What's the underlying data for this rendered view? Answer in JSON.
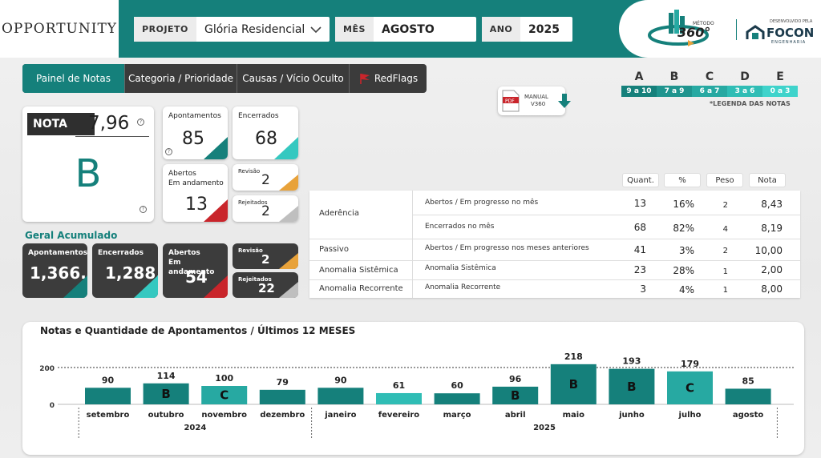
{
  "header": {
    "logo": "OPPORTUNITY",
    "filters": [
      {
        "label": "PROJETO",
        "value": "Glória Residencial"
      },
      {
        "label": "MÊS",
        "value": "AGOSTO"
      },
      {
        "label": "ANO",
        "value": "2025"
      }
    ],
    "brand": {
      "method_small": "MÉTODO",
      "method": "360°",
      "dev_small": "DESENVOLVIDO PELA",
      "company": "FOCON",
      "company_sub": "ENGENHARIA"
    }
  },
  "tabs": [
    {
      "label": "Painel de Notas",
      "active": true
    },
    {
      "label": "Categoria / Prioridade",
      "active": false
    },
    {
      "label": "Causas / Vício Oculto",
      "active": false
    },
    {
      "label": "RedFlags",
      "active": false
    }
  ],
  "manual": {
    "line1": "MANUAL",
    "line2": "V360"
  },
  "legend": {
    "grades": [
      {
        "letter": "A",
        "range": "9 a 10",
        "color": "#15807b"
      },
      {
        "letter": "B",
        "range": "7 a 9",
        "color": "#1f948e"
      },
      {
        "letter": "C",
        "range": "6 a 7",
        "color": "#27a9a2"
      },
      {
        "letter": "D",
        "range": "3 a 6",
        "color": "#2fbdb5"
      },
      {
        "letter": "E",
        "range": "0 a 3",
        "color": "#3fd3cb"
      }
    ],
    "caption": "*LEGENDA DAS NOTAS"
  },
  "score": {
    "label": "NOTA",
    "value": "7,96",
    "grade": "B"
  },
  "month_cards": {
    "apontamentos": {
      "label": "Apontamentos",
      "value": "85"
    },
    "encerrados": {
      "label": "Encerrados",
      "value": "68"
    },
    "abertos": {
      "label": "Abertos\nEm andamento",
      "value": "13"
    },
    "revisao": {
      "label": "Revisão",
      "value": "2"
    },
    "rejeitados": {
      "label": "Rejeitados",
      "value": "2"
    }
  },
  "accum": {
    "title": "Geral Acumulado",
    "apontamentos": {
      "label": "Apontamentos",
      "value": "1,366..."
    },
    "encerrados": {
      "label": "Encerrados",
      "value": "1,288..."
    },
    "abertos": {
      "label": "Abertos\nEm andamento",
      "value": "54"
    },
    "revisao": {
      "label": "Revisão",
      "value": "2"
    },
    "rejeitados": {
      "label": "Rejeitados",
      "value": "22"
    }
  },
  "table": {
    "headers": [
      "Quant.",
      "%",
      "Peso",
      "Nota"
    ],
    "rows": [
      {
        "category": "Aderência",
        "desc": "Abertos / Em progresso no mês",
        "quant": "13",
        "pct": "16%",
        "peso": "2",
        "nota": "8,43"
      },
      {
        "category": "",
        "desc": "Encerrados no mês",
        "quant": "68",
        "pct": "82%",
        "peso": "4",
        "nota": "8,19"
      },
      {
        "category": "Passivo",
        "desc": "Abertos / Em progresso nos meses anteriores",
        "quant": "41",
        "pct": "3%",
        "peso": "2",
        "nota": "10,00"
      },
      {
        "category": "Anomalia Sistêmica",
        "desc": "Anomalia Sistêmica",
        "quant": "23",
        "pct": "28%",
        "peso": "1",
        "nota": "2,00"
      },
      {
        "category": "Anomalia Recorrente",
        "desc": "Anomalia Recorrente",
        "quant": "3",
        "pct": "4%",
        "peso": "1",
        "nota": "8,00"
      }
    ]
  },
  "chart_data": {
    "type": "bar",
    "title": "Notas e Quantidade de Apontamentos / Últimos 12 MESES",
    "categories": [
      "setembro",
      "outubro",
      "novembro",
      "dezembro",
      "janeiro",
      "fevereiro",
      "março",
      "abril",
      "maio",
      "junho",
      "julho",
      "agosto"
    ],
    "years": [
      {
        "label": "2024",
        "span": 4
      },
      {
        "label": "2025",
        "span": 8
      }
    ],
    "values": [
      90,
      114,
      100,
      79,
      90,
      61,
      60,
      96,
      218,
      193,
      179,
      85
    ],
    "grades": [
      "",
      "B",
      "C",
      "",
      "",
      "",
      "",
      "B",
      "B",
      "B",
      "C",
      ""
    ],
    "colors": [
      "#15807b",
      "#15807b",
      "#27a9a2",
      "#15807b",
      "#15807b",
      "#2fbdb5",
      "#15807b",
      "#15807b",
      "#15807b",
      "#15807b",
      "#27a9a2",
      "#15807b"
    ],
    "reference_line": 200,
    "yticks": [
      0,
      200
    ],
    "ylim": [
      0,
      240
    ]
  }
}
